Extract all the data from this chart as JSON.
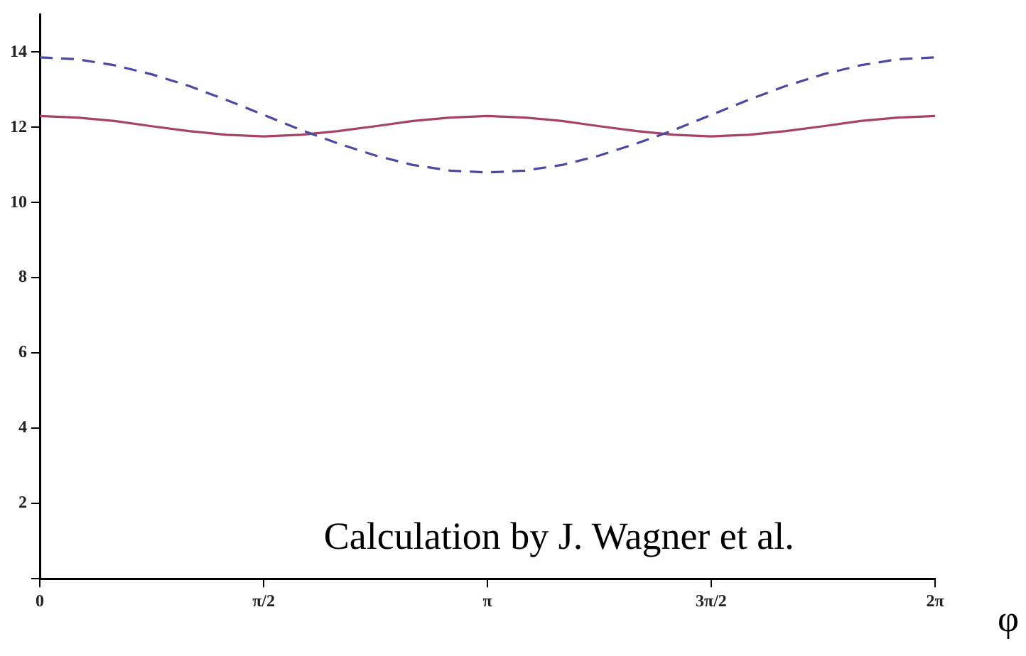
{
  "chart_data": {
    "type": "line",
    "xlabel": "φ",
    "annotations": [
      "Calculation by J. Wagner et al."
    ],
    "x": [
      0,
      0.262,
      0.524,
      0.785,
      1.047,
      1.309,
      1.571,
      1.833,
      2.094,
      2.356,
      2.618,
      2.88,
      3.142,
      3.403,
      3.665,
      3.927,
      4.189,
      4.451,
      4.712,
      4.974,
      5.236,
      5.498,
      5.76,
      6.021,
      6.283
    ],
    "series": [
      {
        "color": "#4a4aa6",
        "line_style": "dashed",
        "values": [
          13.86,
          13.81,
          13.65,
          13.41,
          13.1,
          12.73,
          12.33,
          11.93,
          11.57,
          11.25,
          11.0,
          10.85,
          10.8,
          10.85,
          11.0,
          11.25,
          11.57,
          11.93,
          12.33,
          12.73,
          13.1,
          13.41,
          13.65,
          13.81,
          13.86
        ]
      },
      {
        "color": "#a8416a",
        "line_style": "solid",
        "values": [
          12.3,
          12.26,
          12.17,
          12.03,
          11.9,
          11.8,
          11.76,
          11.8,
          11.9,
          12.03,
          12.17,
          12.26,
          12.3,
          12.26,
          12.17,
          12.03,
          11.9,
          11.8,
          11.76,
          11.8,
          11.9,
          12.03,
          12.17,
          12.26,
          12.3
        ]
      }
    ],
    "xlim": [
      0,
      6.283
    ],
    "xticks": [
      0,
      {
        "value": 1.571,
        "label": "π/2"
      },
      {
        "value": 3.142,
        "label": "π"
      },
      {
        "value": 4.712,
        "label": "3π/2"
      },
      {
        "value": 6.283,
        "label": "2π"
      }
    ],
    "ylim": [
      0,
      15
    ],
    "yticks": [
      {
        "value": 0,
        "label": null
      },
      2,
      4,
      6,
      8,
      10,
      12,
      14
    ],
    "grid": false,
    "legend": false,
    "marker": "none"
  }
}
